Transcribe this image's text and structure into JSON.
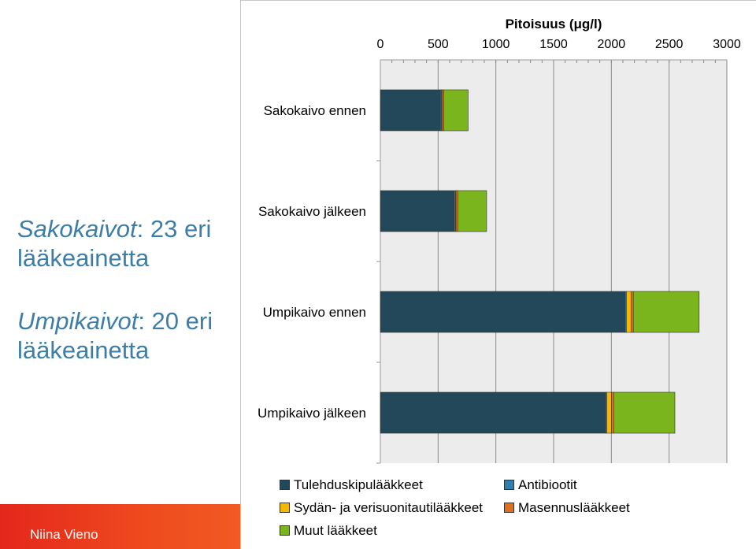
{
  "left_notes": [
    {
      "term": "Sakokaivot",
      "rest": ": 23 eri",
      "line2": "lääkeainetta"
    },
    {
      "term": "Umpikaivot",
      "rest": ": 20 eri",
      "line2": "lääkeainetta"
    }
  ],
  "footer": {
    "author": "Niina Vieno",
    "color": "#e4271c"
  },
  "chart_data": {
    "type": "bar",
    "orientation": "horizontal",
    "stacked": true,
    "title": "Pitoisuus (μg/l)",
    "xlabel": "",
    "ylabel": "",
    "xlim": [
      0,
      3000
    ],
    "xticks": [
      "0",
      "500",
      "1000",
      "1500",
      "2000",
      "2500",
      "3000"
    ],
    "axis_position": "top",
    "grid": true,
    "categories": [
      "Sakokaivo ennen",
      "Sakokaivo jälkeen",
      "Umpikaivo ennen",
      "Umpikaivo jälkeen"
    ],
    "series": [
      {
        "name": "Tulehduskipulääkkeet",
        "color": "#23485a",
        "values": [
          520,
          640,
          2120,
          1950
        ]
      },
      {
        "name": "Antibiootit",
        "color": "#2f7fae",
        "values": [
          10,
          10,
          10,
          10
        ]
      },
      {
        "name": "Sydän- ja verisuonitautilääkkeet",
        "color": "#f5b800",
        "values": [
          5,
          5,
          40,
          40
        ]
      },
      {
        "name": "Masennuslääkkeet",
        "color": "#e07020",
        "values": [
          15,
          15,
          20,
          20
        ]
      },
      {
        "name": "Muut lääkkeet",
        "color": "#7ab51d",
        "values": [
          210,
          250,
          570,
          530
        ]
      }
    ],
    "legend_position": "bottom"
  }
}
